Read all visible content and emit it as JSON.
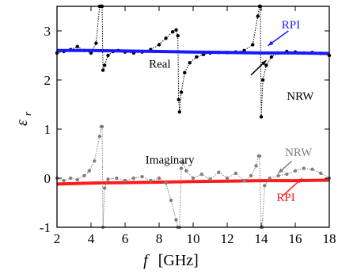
{
  "chart_data": {
    "type": "line",
    "xlabel_symbol": "f",
    "xlabel_unit": "[GHz]",
    "ylabel_symbol": "ε",
    "ylabel_sub": "r",
    "xlim": [
      2,
      18
    ],
    "ylim": [
      -1,
      3.5
    ],
    "xticks": [
      2,
      4,
      6,
      8,
      10,
      12,
      14,
      16,
      18
    ],
    "yticks": [
      -1,
      0,
      1,
      2,
      3
    ],
    "colors": {
      "rpi_real": "#1a1aff",
      "rpi_imag": "#ff1a1a",
      "nrw_real": "#000000",
      "nrw_imag": "#808080"
    },
    "annotations": [
      {
        "id": "real",
        "text": "Real",
        "x": 7.4,
        "y": 2.25,
        "color": "#000000"
      },
      {
        "id": "nrw-real",
        "text": "NRW",
        "x": 15.5,
        "y": 1.6,
        "color": "#000000"
      },
      {
        "id": "rpi-real",
        "text": "RPI",
        "x": 15.2,
        "y": 3.05,
        "color": "#1a1aff"
      },
      {
        "id": "imaginary",
        "text": "Imaginary",
        "x": 7.2,
        "y": 0.3,
        "color": "#000000"
      },
      {
        "id": "nrw-imag",
        "text": "NRW",
        "x": 15.4,
        "y": 0.45,
        "color": "#808080"
      },
      {
        "id": "rpi-imag",
        "text": "RPI",
        "x": 14.9,
        "y": -0.47,
        "color": "#ff1a1a"
      }
    ],
    "series": [
      {
        "id": "rpi-real",
        "x": [
          2,
          4,
          6,
          8,
          10,
          12,
          14,
          16,
          18
        ],
        "y": [
          2.6,
          2.6,
          2.59,
          2.58,
          2.57,
          2.56,
          2.55,
          2.55,
          2.54
        ]
      },
      {
        "id": "rpi-imag",
        "x": [
          2,
          4,
          6,
          8,
          10,
          12,
          14,
          16,
          18
        ],
        "y": [
          -0.12,
          -0.1,
          -0.09,
          -0.08,
          -0.07,
          -0.06,
          -0.05,
          -0.05,
          -0.04
        ]
      },
      {
        "id": "nrw-real",
        "x": [
          2,
          2.4,
          2.8,
          3.2,
          3.6,
          4.0,
          4.3,
          4.5,
          4.6,
          4.65,
          4.7,
          4.8,
          5.0,
          5.3,
          5.6,
          6.0,
          6.5,
          7.0,
          7.5,
          8.0,
          8.4,
          8.8,
          9.0,
          9.1,
          9.15,
          9.2,
          9.3,
          9.5,
          9.8,
          10.2,
          10.6,
          11.0,
          11.5,
          12.0,
          12.5,
          13.0,
          13.5,
          13.8,
          13.9,
          13.95,
          14.0,
          14.1,
          14.3,
          14.6,
          15.0,
          15.5,
          16.0,
          16.5,
          17.0,
          17.5,
          18.0
        ],
        "y": [
          2.55,
          2.58,
          2.62,
          2.68,
          2.6,
          2.55,
          2.75,
          3.5,
          3.5,
          3.5,
          2.2,
          2.3,
          2.5,
          2.58,
          2.6,
          2.57,
          2.55,
          2.57,
          2.62,
          2.72,
          2.85,
          2.98,
          3.02,
          2.9,
          1.6,
          1.35,
          1.75,
          2.15,
          2.35,
          2.47,
          2.52,
          2.55,
          2.56,
          2.56,
          2.57,
          2.6,
          2.72,
          3.3,
          3.5,
          3.5,
          1.25,
          2.0,
          2.3,
          2.47,
          2.55,
          2.58,
          2.57,
          2.55,
          2.56,
          2.54,
          2.5
        ]
      },
      {
        "id": "nrw-imag",
        "x": [
          2,
          2.4,
          2.8,
          3.2,
          3.6,
          3.9,
          4.2,
          4.5,
          4.6,
          4.65,
          4.7,
          4.8,
          5.0,
          5.5,
          6.0,
          6.5,
          7.0,
          7.5,
          8.0,
          8.4,
          8.7,
          9.0,
          9.1,
          9.2,
          9.3,
          9.4,
          9.6,
          10.0,
          10.5,
          11.0,
          11.5,
          12.0,
          12.5,
          13.0,
          13.4,
          13.7,
          13.85,
          13.9,
          14.0,
          14.05,
          14.2,
          14.5,
          15.0,
          15.5,
          16.0,
          16.5,
          17.0,
          17.5,
          18.0
        ],
        "y": [
          0.0,
          -0.05,
          0.0,
          -0.03,
          0.05,
          0.15,
          0.35,
          0.85,
          1.05,
          1.05,
          -1.0,
          -0.2,
          -0.02,
          0.0,
          -0.05,
          0.0,
          0.03,
          -0.05,
          0.0,
          -0.1,
          -0.45,
          -0.85,
          -1.0,
          -1.0,
          0.2,
          0.32,
          0.15,
          0.0,
          0.08,
          -0.02,
          0.12,
          0.0,
          0.1,
          -0.05,
          0.05,
          0.25,
          0.45,
          0.45,
          -1.0,
          -1.0,
          -0.15,
          0.0,
          0.05,
          0.08,
          0.15,
          0.2,
          0.18,
          0.1,
          0.0
        ]
      }
    ]
  }
}
